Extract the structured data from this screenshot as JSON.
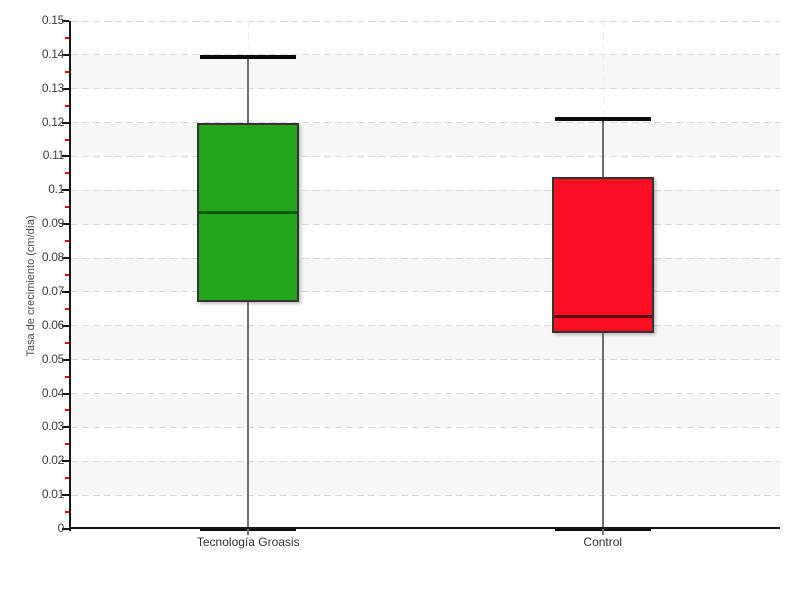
{
  "chart_data": {
    "type": "box",
    "title": "",
    "ylabel": "Tasa de crecimiento (cm/día)",
    "xlabel": "",
    "categories": [
      "Tecnología Groasis",
      "Control"
    ],
    "series": [
      {
        "name": "Tecnología Groasis",
        "whisker_low": 0,
        "q1": 0.067,
        "median": 0.0935,
        "q3": 0.12,
        "whisker_high": 0.1395,
        "box_color": "#23a41b",
        "median_color": "#0e5c0b"
      },
      {
        "name": "Control",
        "whisker_low": 0,
        "q1": 0.058,
        "median": 0.063,
        "q3": 0.104,
        "whisker_high": 0.121,
        "box_color": "#fb0e24",
        "median_color": "#5e0010"
      }
    ],
    "ylim": [
      0,
      0.15
    ],
    "ytick_step": 0.01,
    "yminor_step": 0.005,
    "ytick_labels": [
      "0",
      "0.01",
      "0.02",
      "0.03",
      "0.04",
      "0.05",
      "0.06",
      "0.07",
      "0.08",
      "0.09",
      "0.1",
      "0.11",
      "0.12",
      "0.13",
      "0.14",
      "0.15"
    ],
    "legend": "none",
    "grid": "dashed horizontal gridlines each 0.01, dashed vertical line per category, alternating gray bands",
    "colors": {
      "band": "#f7f7f7",
      "grid_horizontal": "#d8d8d8",
      "grid_vertical": "#ececec",
      "axis": "#161616",
      "minor_tick": "#ee0000",
      "whisker": "#6e6e6e",
      "cap": "#0a0a0a",
      "background": "#ffffff"
    }
  }
}
